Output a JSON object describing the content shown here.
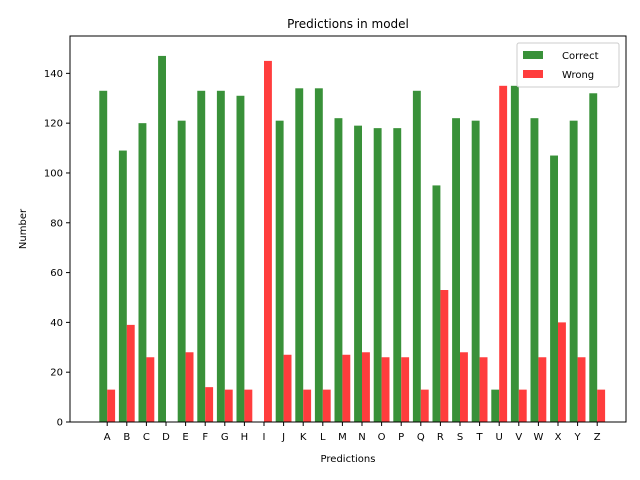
{
  "chart_data": {
    "type": "bar",
    "title": "Predictions in model",
    "xlabel": "Predictions",
    "ylabel": "Number",
    "categories": [
      "A",
      "B",
      "C",
      "D",
      "E",
      "F",
      "G",
      "H",
      "I",
      "J",
      "K",
      "L",
      "M",
      "N",
      "O",
      "P",
      "Q",
      "R",
      "S",
      "T",
      "U",
      "V",
      "W",
      "X",
      "Y",
      "Z"
    ],
    "series": [
      {
        "name": "Correct",
        "color": "#2e8b2e",
        "values": [
          133,
          109,
          120,
          147,
          121,
          133,
          133,
          131,
          0,
          121,
          134,
          134,
          122,
          119,
          118,
          118,
          133,
          95,
          122,
          121,
          13,
          135,
          122,
          107,
          121,
          132
        ]
      },
      {
        "name": "Wrong",
        "color": "#ff3333",
        "values": [
          13,
          39,
          26,
          0,
          28,
          14,
          13,
          13,
          145,
          27,
          13,
          13,
          27,
          28,
          26,
          26,
          13,
          53,
          28,
          26,
          135,
          13,
          26,
          40,
          26,
          13
        ]
      }
    ],
    "ylim": [
      0,
      155
    ],
    "yticks": [
      0,
      20,
      40,
      60,
      80,
      100,
      120,
      140
    ],
    "legend_position": "top-right",
    "grid": false
  }
}
